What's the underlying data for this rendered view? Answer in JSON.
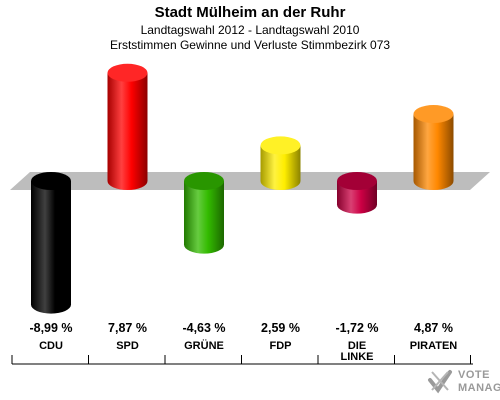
{
  "header": {
    "title": "Stadt Mülheim an der Ruhr",
    "subtitle1": "Landtagswahl 2012 - Landtagswahl 2010",
    "subtitle2": "Erststimmen Gewinne und Verluste Stimmbezirk 073"
  },
  "logo": {
    "line1": "VOTE",
    "line2": "MANAGER",
    "icon": "checkmark-cross-icon"
  },
  "chart_data": {
    "type": "bar",
    "title": "Stadt Mülheim an der Ruhr",
    "categories": [
      "CDU",
      "SPD",
      "GRÜNE",
      "FDP",
      "DIE LINKE",
      "PIRATEN"
    ],
    "category_lines": [
      [
        "CDU"
      ],
      [
        "SPD"
      ],
      [
        "GRÜNE"
      ],
      [
        "FDP"
      ],
      [
        "DIE",
        "LINKE"
      ],
      [
        "PIRATEN"
      ]
    ],
    "values": [
      -8.99,
      7.87,
      -4.63,
      2.59,
      -1.72,
      4.87
    ],
    "value_labels": [
      "-8,99 %",
      "7,87 %",
      "-4,63 %",
      "2,59 %",
      "-1,72 %",
      "4,87 %"
    ],
    "colors": [
      "#000000",
      "#ff0000",
      "#33bb00",
      "#ffee00",
      "#cc0044",
      "#ff8800"
    ],
    "ylim": [
      -9,
      9
    ],
    "grid": false,
    "legend": "none"
  }
}
